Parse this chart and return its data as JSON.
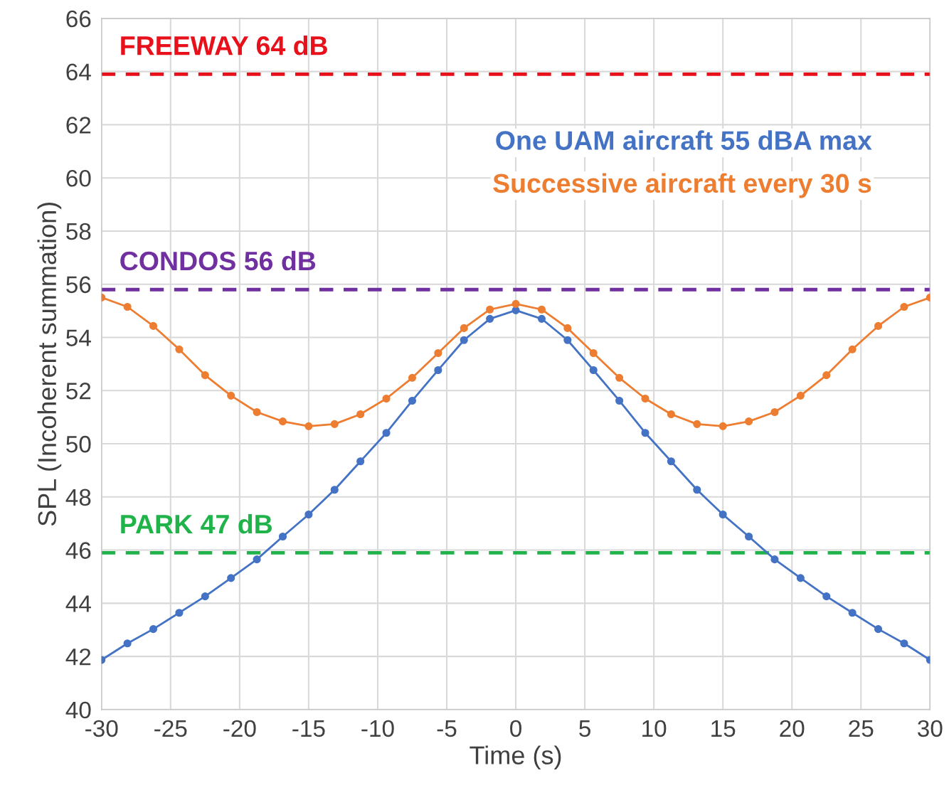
{
  "chart_data": {
    "type": "line",
    "xlabel": "Time (s)",
    "ylabel": "SPL (Incoherent summation)",
    "x": [
      -30,
      -28.125,
      -26.25,
      -24.375,
      -22.5,
      -20.625,
      -18.75,
      -16.875,
      -15,
      -13.125,
      -11.25,
      -9.375,
      -7.5,
      -5.625,
      -3.75,
      -1.875,
      0,
      1.875,
      3.75,
      5.625,
      7.5,
      9.375,
      11.25,
      13.125,
      15,
      16.875,
      18.75,
      20.625,
      22.5,
      24.375,
      26.25,
      28.125,
      30
    ],
    "series": [
      {
        "name": "One UAM aircraft 55 dBA max",
        "color": "#4472c4",
        "values": [
          41.87,
          42.49,
          43.03,
          43.64,
          44.26,
          44.95,
          45.65,
          46.51,
          47.34,
          48.27,
          49.34,
          50.41,
          51.62,
          52.77,
          53.9,
          54.7,
          55.02,
          54.7,
          53.9,
          52.77,
          51.62,
          50.41,
          49.34,
          48.27,
          47.34,
          46.51,
          45.65,
          44.95,
          44.26,
          43.64,
          43.03,
          42.49,
          41.87
        ]
      },
      {
        "name": "Successive aircraft every 30 s",
        "color": "#ed7d31",
        "values": [
          55.5,
          55.15,
          54.43,
          53.55,
          52.58,
          51.81,
          51.19,
          50.84,
          50.66,
          50.74,
          51.11,
          51.7,
          52.48,
          53.41,
          54.35,
          55.05,
          55.26,
          55.05,
          54.35,
          53.41,
          52.48,
          51.7,
          51.11,
          50.74,
          50.66,
          50.84,
          51.19,
          51.81,
          52.58,
          53.55,
          54.43,
          55.15,
          55.5
        ]
      }
    ],
    "ref_lines": [
      {
        "axis": "y",
        "value": 63.9,
        "label": "FREEWAY 64 dB",
        "color": "#e8101a",
        "line_style": "dashed"
      },
      {
        "axis": "y",
        "value": 55.8,
        "label": "CONDOS 56 dB",
        "color": "#7030a0",
        "line_style": "dashed"
      },
      {
        "axis": "y",
        "value": 45.9,
        "label": "PARK 47 dB",
        "color": "#1fb34a",
        "line_style": "dashed"
      }
    ],
    "xlim": [
      -30,
      30
    ],
    "xticks": [
      -30,
      -25,
      -20,
      -15,
      -10,
      -5,
      0,
      5,
      10,
      15,
      20,
      25,
      30
    ],
    "ylim": [
      40,
      66
    ],
    "yticks": [
      40,
      42,
      44,
      46,
      48,
      50,
      52,
      54,
      56,
      58,
      60,
      62,
      64,
      66
    ],
    "grid": true,
    "marker": "circle",
    "line_style": "solid",
    "legend": "top right"
  }
}
